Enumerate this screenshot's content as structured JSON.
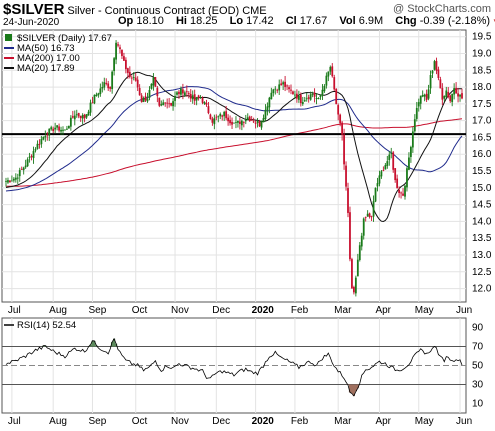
{
  "header": {
    "symbol": "$SILVER",
    "subtitle": "Silver - Continuous Contract (EOD)",
    "exchange": "CME",
    "watermark": "@ StockCharts.com",
    "date": "24-Jun-2020",
    "op_label": "Op",
    "op": "18.10",
    "hi_label": "Hi",
    "hi": "18.25",
    "lo_label": "Lo",
    "lo": "17.42",
    "cl_label": "Cl",
    "cl": "17.67",
    "vol_label": "Vol",
    "vol": "6.9M",
    "chg_label": "Chg",
    "chg": "-0.39 (-2.18%)",
    "chg_arrow": "▼"
  },
  "colors": {
    "up": "#1a7a1a",
    "down": "#c8102e",
    "ma50": "#1f2a8c",
    "ma200": "#c8102e",
    "ma20": "#111111",
    "rsi_fill_over": "#5b8a5b",
    "rsi_fill_under": "#a0705f"
  },
  "chart_data": [
    {
      "type": "candlestick",
      "legend": [
        {
          "label": "$SILVER (Daily) 17.67",
          "color": "#1a7a1a",
          "swatch": "square"
        },
        {
          "label": "MA(50) 16.73",
          "color": "#1f2a8c",
          "swatch": "line"
        },
        {
          "label": "MA(200) 17.00",
          "color": "#c8102e",
          "swatch": "line"
        },
        {
          "label": "MA(20) 17.89",
          "color": "#111111",
          "swatch": "line"
        }
      ],
      "x_ticks": [
        "Jul",
        "Aug",
        "Sep",
        "Oct",
        "Nov",
        "Dec",
        "2020",
        "Feb",
        "Mar",
        "Apr",
        "May",
        "Jun"
      ],
      "y_ticks": [
        12.0,
        12.5,
        13.0,
        13.5,
        14.0,
        14.5,
        15.0,
        15.5,
        16.0,
        16.5,
        17.0,
        17.5,
        18.0,
        18.5,
        19.0,
        19.5
      ],
      "ylim": [
        11.6,
        19.7
      ],
      "hline": 16.6,
      "close_path": [
        [
          0,
          15.2
        ],
        [
          5,
          15.3
        ],
        [
          10,
          15.7
        ],
        [
          15,
          16.2
        ],
        [
          20,
          16.6
        ],
        [
          25,
          16.8
        ],
        [
          30,
          16.7
        ],
        [
          35,
          17.2
        ],
        [
          40,
          17.1
        ],
        [
          45,
          17.7
        ],
        [
          50,
          18.1
        ],
        [
          53,
          18.0
        ],
        [
          56,
          19.4
        ],
        [
          58,
          19.1
        ],
        [
          60,
          18.7
        ],
        [
          63,
          18.3
        ],
        [
          66,
          18.2
        ],
        [
          69,
          17.6
        ],
        [
          72,
          17.7
        ],
        [
          75,
          18.2
        ],
        [
          78,
          17.4
        ],
        [
          81,
          17.6
        ],
        [
          84,
          17.5
        ],
        [
          87,
          17.8
        ],
        [
          90,
          17.9
        ],
        [
          93,
          17.8
        ],
        [
          96,
          17.6
        ],
        [
          99,
          17.7
        ],
        [
          102,
          17.4
        ],
        [
          105,
          17.0
        ],
        [
          108,
          17.1
        ],
        [
          111,
          17.2
        ],
        [
          114,
          17.0
        ],
        [
          117,
          16.9
        ],
        [
          120,
          17.0
        ],
        [
          123,
          17.1
        ],
        [
          126,
          17.0
        ],
        [
          129,
          16.9
        ],
        [
          132,
          17.3
        ],
        [
          135,
          17.9
        ],
        [
          138,
          18.0
        ],
        [
          141,
          18.1
        ],
        [
          144,
          17.9
        ],
        [
          147,
          17.8
        ],
        [
          150,
          17.6
        ],
        [
          153,
          17.7
        ],
        [
          156,
          17.8
        ],
        [
          159,
          17.6
        ],
        [
          162,
          18.1
        ],
        [
          165,
          18.6
        ],
        [
          167,
          17.9
        ],
        [
          169,
          17.1
        ],
        [
          171,
          16.6
        ],
        [
          172,
          15.7
        ],
        [
          173,
          15.0
        ],
        [
          174,
          14.2
        ],
        [
          175,
          12.8
        ],
        [
          176,
          12.0
        ],
        [
          177,
          11.8
        ],
        [
          178,
          12.3
        ],
        [
          179,
          12.8
        ],
        [
          180,
          13.3
        ],
        [
          182,
          14.0
        ],
        [
          184,
          14.2
        ],
        [
          186,
          14.1
        ],
        [
          188,
          15.0
        ],
        [
          190,
          15.3
        ],
        [
          192,
          15.6
        ],
        [
          194,
          15.8
        ],
        [
          196,
          16.0
        ],
        [
          198,
          15.2
        ],
        [
          200,
          14.9
        ],
        [
          202,
          14.8
        ],
        [
          204,
          15.5
        ],
        [
          206,
          16.3
        ],
        [
          208,
          17.1
        ],
        [
          210,
          17.6
        ],
        [
          212,
          17.8
        ],
        [
          214,
          17.6
        ],
        [
          216,
          18.3
        ],
        [
          218,
          18.8
        ],
        [
          220,
          18.2
        ],
        [
          222,
          17.7
        ],
        [
          224,
          17.9
        ],
        [
          226,
          17.6
        ],
        [
          228,
          18.0
        ],
        [
          230,
          17.8
        ],
        [
          232,
          17.67
        ]
      ]
    },
    {
      "type": "line",
      "legend": [
        {
          "label": "RSI(14) 52.54",
          "color": "#000000",
          "swatch": "line"
        }
      ],
      "x_ticks": [
        "Jul",
        "Aug",
        "Sep",
        "Oct",
        "Nov",
        "Dec",
        "2020",
        "Feb",
        "Mar",
        "Apr",
        "May",
        "Jun"
      ],
      "y_ticks": [
        10,
        30,
        50,
        70,
        90
      ],
      "ylim": [
        0,
        100
      ],
      "hlines": [
        70,
        50,
        30
      ],
      "values": [
        [
          0,
          52
        ],
        [
          5,
          55
        ],
        [
          10,
          60
        ],
        [
          15,
          66
        ],
        [
          20,
          70
        ],
        [
          25,
          64
        ],
        [
          30,
          60
        ],
        [
          35,
          68
        ],
        [
          40,
          65
        ],
        [
          44,
          76
        ],
        [
          48,
          68
        ],
        [
          52,
          64
        ],
        [
          55,
          78
        ],
        [
          58,
          63
        ],
        [
          61,
          55
        ],
        [
          64,
          52
        ],
        [
          67,
          50
        ],
        [
          70,
          45
        ],
        [
          73,
          48
        ],
        [
          76,
          55
        ],
        [
          79,
          45
        ],
        [
          82,
          50
        ],
        [
          85,
          47
        ],
        [
          88,
          52
        ],
        [
          91,
          50
        ],
        [
          94,
          48
        ],
        [
          97,
          46
        ],
        [
          100,
          44
        ],
        [
          102,
          38
        ],
        [
          104,
          36
        ],
        [
          107,
          42
        ],
        [
          110,
          44
        ],
        [
          113,
          42
        ],
        [
          116,
          40
        ],
        [
          119,
          44
        ],
        [
          122,
          46
        ],
        [
          125,
          43
        ],
        [
          128,
          42
        ],
        [
          131,
          50
        ],
        [
          134,
          60
        ],
        [
          137,
          63
        ],
        [
          140,
          58
        ],
        [
          143,
          55
        ],
        [
          146,
          52
        ],
        [
          149,
          48
        ],
        [
          152,
          52
        ],
        [
          155,
          54
        ],
        [
          158,
          50
        ],
        [
          161,
          58
        ],
        [
          164,
          62
        ],
        [
          167,
          50
        ],
        [
          169,
          44
        ],
        [
          171,
          40
        ],
        [
          173,
          34
        ],
        [
          175,
          22
        ],
        [
          177,
          20
        ],
        [
          179,
          28
        ],
        [
          181,
          38
        ],
        [
          183,
          46
        ],
        [
          185,
          47
        ],
        [
          187,
          50
        ],
        [
          190,
          54
        ],
        [
          193,
          52
        ],
        [
          196,
          48
        ],
        [
          199,
          45
        ],
        [
          202,
          47
        ],
        [
          205,
          52
        ],
        [
          208,
          60
        ],
        [
          211,
          66
        ],
        [
          213,
          64
        ],
        [
          215,
          62
        ],
        [
          217,
          70
        ],
        [
          219,
          68
        ],
        [
          221,
          58
        ],
        [
          223,
          56
        ],
        [
          225,
          60
        ],
        [
          227,
          54
        ],
        [
          229,
          58
        ],
        [
          232,
          52.5
        ]
      ]
    }
  ]
}
